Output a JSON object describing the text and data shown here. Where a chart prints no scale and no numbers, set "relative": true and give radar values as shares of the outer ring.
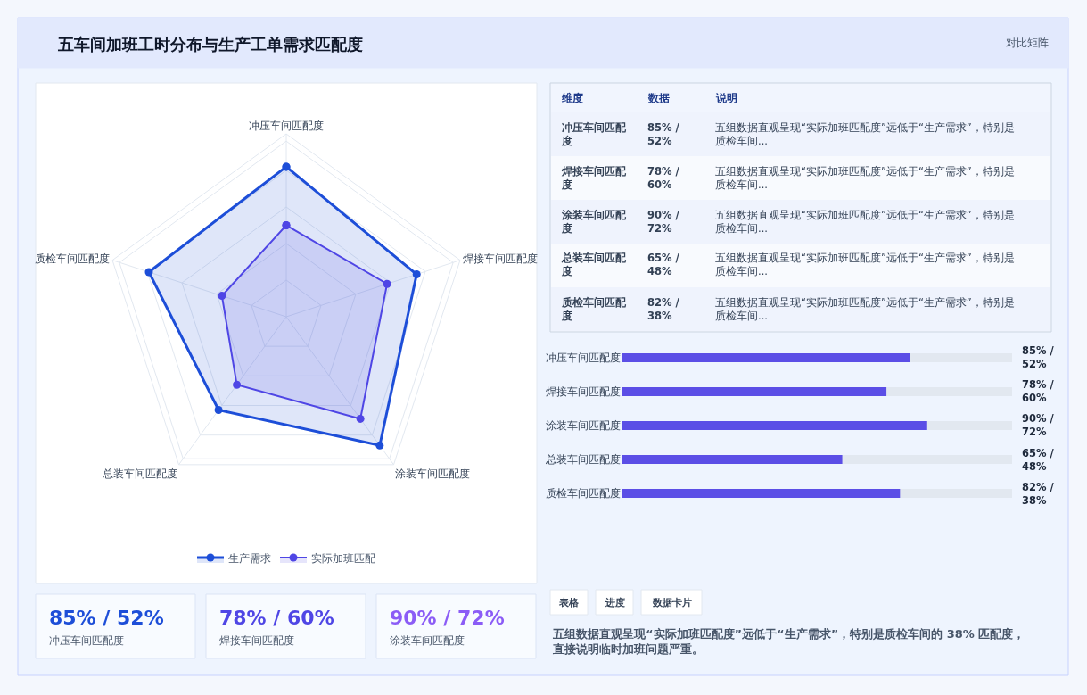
{
  "chart_data": [
    {
      "type": "other",
      "title": "五车间加班工时分布与生产工单需求匹配度",
      "subtitle": "对比矩阵"
    },
    {
      "type": "radar",
      "categories": [
        "冲压车间匹配度",
        "焊接车间匹配度",
        "涂装车间匹配度",
        "总装车间匹配度",
        "质检车间匹配度"
      ],
      "relative": true,
      "grid": true,
      "legend": "bottom",
      "marker": "circle",
      "series": [
        {
          "name": "生产需求",
          "color": "#1d4ed8",
          "values": [
            0.82,
            0.75,
            0.87,
            0.63,
            0.79
          ]
        },
        {
          "name": "实际加班匹配",
          "color": "#4f46e5",
          "values": [
            0.5,
            0.58,
            0.69,
            0.46,
            0.37
          ]
        }
      ]
    },
    {
      "type": "other",
      "annotations": [
        "维度",
        "数据",
        "说明",
        "冲压车间匹配度",
        "85% / 52%",
        "五组数据直观呈现“实际加班匹配度”远低于“生产需求”，特别是质检车间...",
        "焊接车间匹配度",
        "78% / 60%",
        "五组数据直观呈现“实际加班匹配度”远低于“生产需求”，特别是质检车间...",
        "涂装车间匹配度",
        "90% / 72%",
        "五组数据直观呈现“实际加班匹配度”远低于“生产需求”，特别是质检车间...",
        "总装车间匹配度",
        "65% / 48%",
        "五组数据直观呈现“实际加班匹配度”远低于“生产需求”，特别是质检车间...",
        "质检车间匹配度",
        "82% / 38%",
        "五组数据直观呈现“实际加班匹配度”远低于“生产需求”，特别是质检车间..."
      ]
    },
    {
      "type": "bar",
      "orientation": "horizontal",
      "xlim": [
        0,
        115
      ],
      "color": "#5b4ee6",
      "categories": [
        "冲压车间匹配度",
        "焊接车间匹配度",
        "涂装车间匹配度",
        "总装车间匹配度",
        "质检车间匹配度"
      ],
      "values": [
        85,
        78,
        90,
        65,
        82
      ],
      "value_labels": [
        "85% / 52%",
        "78% / 60%",
        "90% / 72%",
        "65% / 48%",
        "82% / 38%"
      ]
    },
    {
      "type": "other",
      "annotations": [
        "85% / 52%",
        "冲压车间匹配度",
        "78% / 60%",
        "焊接车间匹配度",
        "90% / 72%",
        "涂装车间匹配度"
      ],
      "colors": [
        "#1d4ed8",
        "#4f46e5",
        "#8b5cf6"
      ]
    },
    {
      "type": "other",
      "annotations": [
        "表格",
        "进度",
        "数据卡片",
        "五组数据直观呈现“实际加班匹配度”远低于“生产需求”，特别是质检车间的 38% 匹配度，直接说明临时加班问题严重。"
      ]
    }
  ]
}
